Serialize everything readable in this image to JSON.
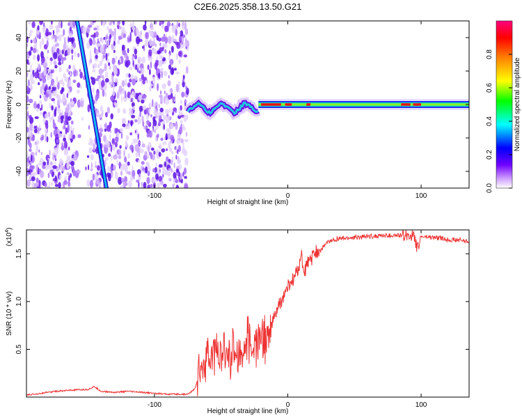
{
  "title": "C2E6.2025.358.13.50.G21",
  "chart_data": [
    {
      "type": "heatmap",
      "title": "C2E6.2025.358.13.50.G21",
      "xlabel": "Height of straight line (km)",
      "ylabel": "Frequency (Hz)",
      "xlim": [
        -196,
        136
      ],
      "ylim": [
        -50,
        50
      ],
      "x_ticks": [
        -100,
        0,
        100
      ],
      "y_ticks": [
        -40,
        -20,
        0,
        20,
        40
      ],
      "colorbar": {
        "label": "Normalized spectral amplitude",
        "range": [
          0,
          1
        ],
        "ticks": [
          "0.0",
          "0.2",
          "0.4",
          "0.6",
          "0.8"
        ],
        "colors": [
          "#ffffff",
          "#cc99ff",
          "#7000ff",
          "#0000ff",
          "#00ffff",
          "#00ff00",
          "#ffff00",
          "#ff8000",
          "#ff0000",
          "#ff0080"
        ]
      },
      "features": [
        {
          "name": "scattered noise",
          "x_range": [
            -196,
            -75
          ],
          "freq_range": [
            -50,
            50
          ],
          "amplitude": 0.1
        },
        {
          "name": "oblique line",
          "x_start": -158,
          "freq_start": 50,
          "x_end": -136,
          "freq_end": -50,
          "amplitude": 0.35
        },
        {
          "name": "wobbly tone",
          "x_range": [
            -75,
            -22
          ],
          "freq_center": -2,
          "amplitude": 0.3
        },
        {
          "name": "steady tone",
          "x_range": [
            -22,
            136
          ],
          "freq_center": 0,
          "amplitude": 0.95
        }
      ]
    },
    {
      "type": "line",
      "xlabel": "Height of straight line (km)",
      "ylabel": "SNR (10 * v/v)",
      "multiplier": "(x10^4)",
      "multiplier_base": "(x10",
      "multiplier_exp": "4",
      "multiplier_close": ")",
      "xlim": [
        -196,
        136
      ],
      "ylim": [
        0,
        1.75
      ],
      "x_ticks": [
        -100,
        0,
        100
      ],
      "y_ticks": [
        "0.5",
        "1.0",
        "1.5"
      ],
      "series": [
        {
          "name": "SNR",
          "color": "#ee3333",
          "x": [
            -196,
            -185,
            -175,
            -165,
            -150,
            -145,
            -140,
            -130,
            -120,
            -110,
            -100,
            -90,
            -80,
            -75,
            -70,
            -66,
            -62,
            -58,
            -55,
            -50,
            -45,
            -40,
            -35,
            -30,
            -25,
            -20,
            -15,
            -10,
            -5,
            0,
            5,
            8,
            10,
            12,
            15,
            18,
            20,
            25,
            30,
            35,
            40,
            50,
            60,
            70,
            80,
            85,
            90,
            95,
            97,
            100,
            110,
            120,
            130,
            136
          ],
          "y": [
            0.02,
            0.04,
            0.06,
            0.07,
            0.08,
            0.11,
            0.06,
            0.05,
            0.06,
            0.05,
            0.04,
            0.03,
            0.03,
            0.03,
            0.08,
            0.25,
            0.4,
            0.35,
            0.5,
            0.4,
            0.45,
            0.5,
            0.45,
            0.55,
            0.5,
            0.65,
            0.6,
            0.85,
            1.0,
            1.15,
            1.25,
            1.35,
            1.5,
            1.3,
            1.4,
            1.45,
            1.5,
            1.55,
            1.62,
            1.65,
            1.66,
            1.67,
            1.68,
            1.69,
            1.69,
            1.69,
            1.7,
            1.68,
            1.55,
            1.68,
            1.67,
            1.65,
            1.64,
            1.63
          ]
        }
      ]
    }
  ]
}
